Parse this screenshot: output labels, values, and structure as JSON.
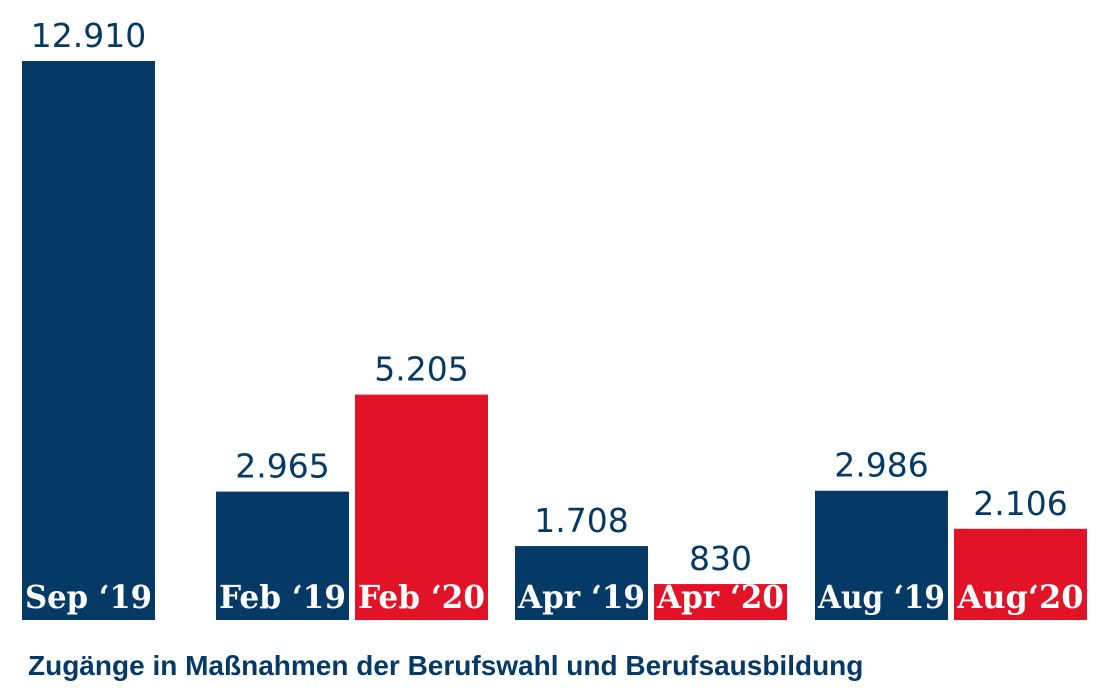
{
  "chart_data": {
    "type": "bar",
    "categories": [
      "Sep ‘19",
      "Feb ‘19",
      "Feb ‘20",
      "Apr ‘19",
      "Apr ‘20",
      "Aug ‘19",
      "Aug‘20"
    ],
    "values": [
      12910,
      2965,
      5205,
      1708,
      830,
      2986,
      2106
    ],
    "value_labels": [
      "12.910",
      "2.965",
      "5.205",
      "1.708",
      "830",
      "2.986",
      "2.106"
    ],
    "bar_colors": [
      "#063a66",
      "#063a66",
      "#e21327",
      "#063a66",
      "#e21327",
      "#063a66",
      "#e21327"
    ],
    "ylim": [
      0,
      12910
    ],
    "grid": false,
    "title": "",
    "xlabel": "",
    "ylabel": ""
  },
  "caption": "Zugänge in Maßnahmen der Berufswahl und Berufsausbildung",
  "colors": {
    "navy": "#063a66",
    "red": "#e21327"
  }
}
